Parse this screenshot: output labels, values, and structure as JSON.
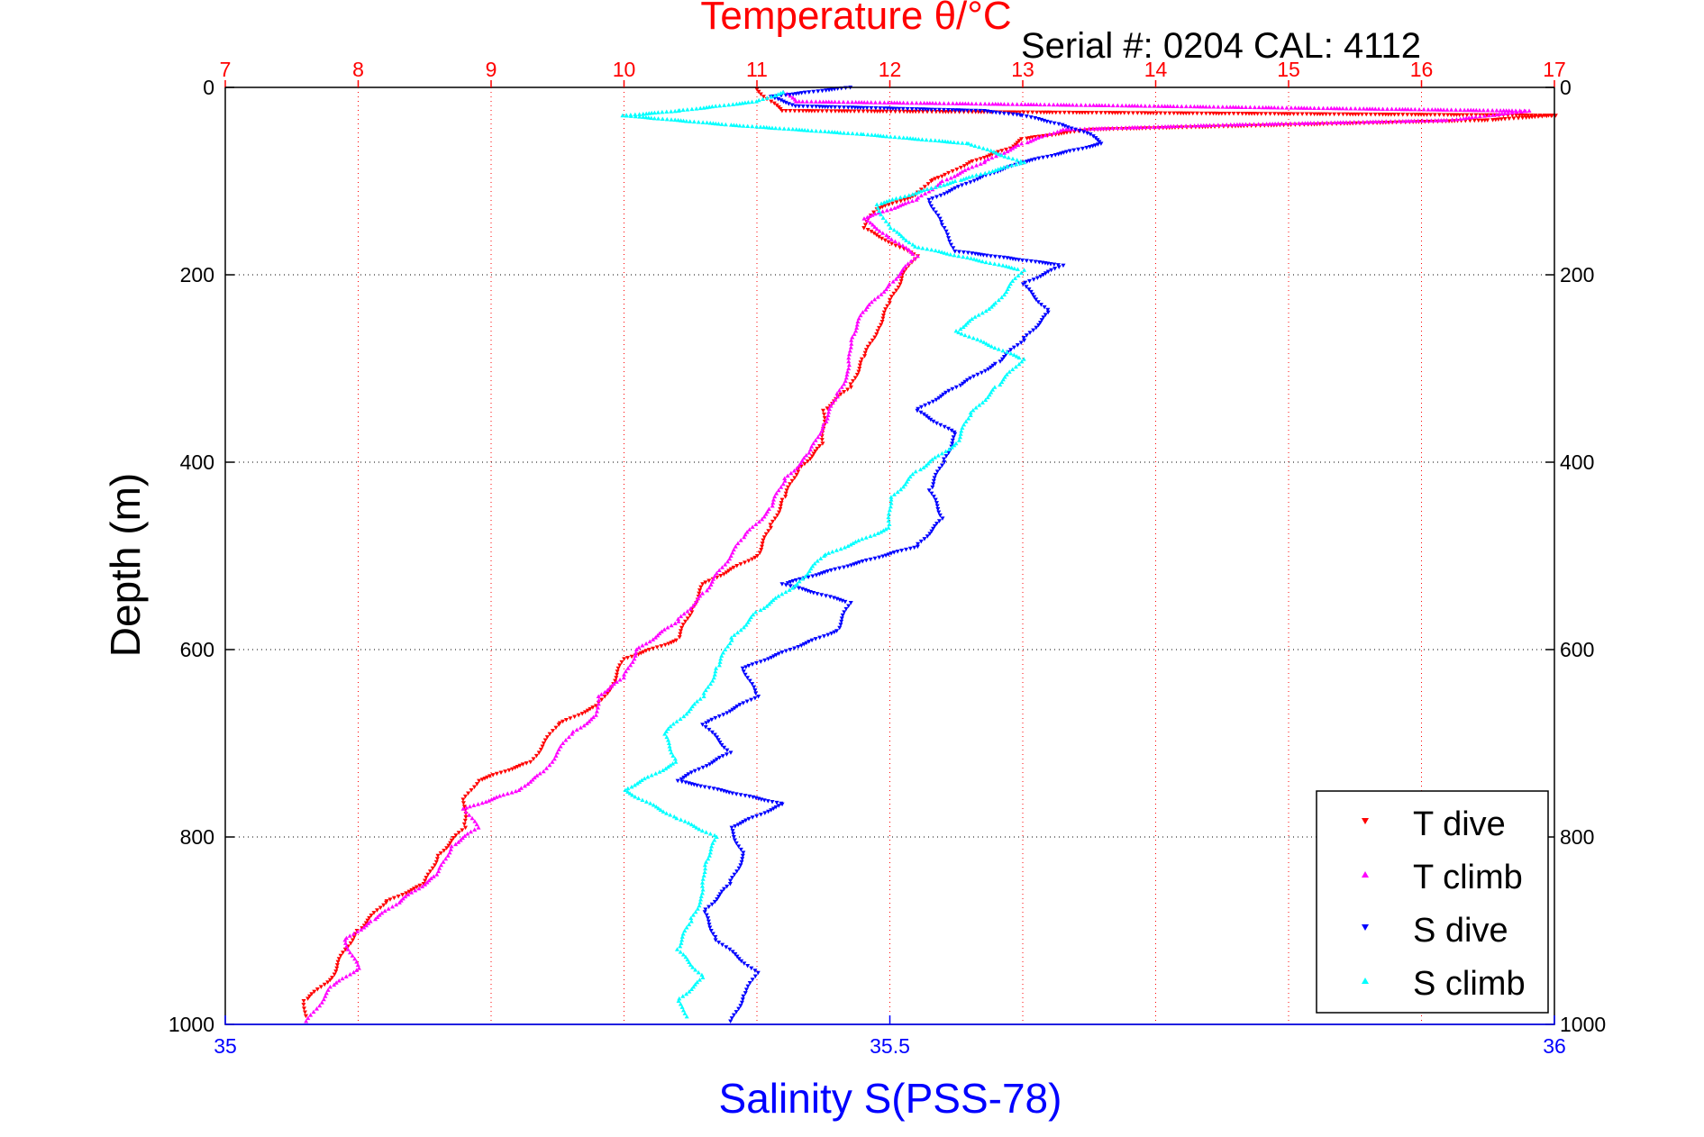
{
  "chart_data": {
    "type": "scatter",
    "title": "Temperature θ/°C",
    "annotation": "Serial #: 0204  CAL: 4112",
    "ylabel": "Depth (m)",
    "xlabel_bottom": "Salinity S(PSS-78)",
    "y_reversed": true,
    "ylim": [
      0,
      1000
    ],
    "yticks": [
      "0",
      "200",
      "400",
      "600",
      "800",
      "1000"
    ],
    "top_axis": {
      "lim": [
        7,
        17
      ],
      "ticks": [
        "7",
        "8",
        "9",
        "10",
        "11",
        "12",
        "13",
        "14",
        "15",
        "16",
        "17"
      ]
    },
    "bottom_axis": {
      "lim": [
        35,
        36
      ],
      "ticks": [
        "35",
        "35.5",
        "36"
      ]
    },
    "grid": true,
    "legend": {
      "placement": "bottom-right",
      "entries": [
        "T dive",
        "T climb",
        "S dive",
        "S climb"
      ]
    },
    "colors": {
      "t_dive": "#ff0000",
      "t_climb": "#ff00ff",
      "s_dive": "#0000ff",
      "s_climb": "#00ffff",
      "top_axis": "#ff0000",
      "bottom_axis": "#0000ff"
    },
    "series": [
      {
        "name": "T dive",
        "axis": "top",
        "marker": "down-triangle",
        "points": [
          [
            11.0,
            2
          ],
          [
            11.1,
            15
          ],
          [
            11.2,
            25
          ],
          [
            17.0,
            30
          ],
          [
            16.5,
            35
          ],
          [
            15.0,
            40
          ],
          [
            13.5,
            45
          ],
          [
            13.0,
            55
          ],
          [
            12.9,
            65
          ],
          [
            12.6,
            80
          ],
          [
            12.4,
            95
          ],
          [
            12.3,
            100
          ],
          [
            12.2,
            115
          ],
          [
            11.9,
            130
          ],
          [
            11.8,
            150
          ],
          [
            12.0,
            165
          ],
          [
            12.2,
            180
          ],
          [
            12.1,
            200
          ],
          [
            12.0,
            230
          ],
          [
            11.9,
            260
          ],
          [
            11.8,
            290
          ],
          [
            11.7,
            320
          ],
          [
            11.5,
            345
          ],
          [
            11.5,
            380
          ],
          [
            11.3,
            410
          ],
          [
            11.2,
            440
          ],
          [
            11.1,
            470
          ],
          [
            11.0,
            500
          ],
          [
            10.6,
            530
          ],
          [
            10.5,
            560
          ],
          [
            10.4,
            590
          ],
          [
            10.0,
            610
          ],
          [
            9.9,
            640
          ],
          [
            9.8,
            660
          ],
          [
            9.5,
            680
          ],
          [
            9.4,
            700
          ],
          [
            9.3,
            720
          ],
          [
            8.9,
            740
          ],
          [
            8.8,
            760
          ],
          [
            8.8,
            790
          ],
          [
            8.6,
            820
          ],
          [
            8.5,
            850
          ],
          [
            8.2,
            870
          ],
          [
            8.0,
            900
          ],
          [
            7.9,
            920
          ],
          [
            7.8,
            950
          ],
          [
            7.6,
            975
          ],
          [
            7.6,
            995
          ]
        ]
      },
      {
        "name": "T climb",
        "axis": "top",
        "marker": "up-triangle",
        "points": [
          [
            11.2,
            5
          ],
          [
            11.3,
            15
          ],
          [
            16.8,
            25
          ],
          [
            16.2,
            35
          ],
          [
            14.5,
            40
          ],
          [
            13.3,
            45
          ],
          [
            13.0,
            60
          ],
          [
            12.7,
            80
          ],
          [
            12.4,
            100
          ],
          [
            12.2,
            120
          ],
          [
            11.8,
            140
          ],
          [
            12.0,
            160
          ],
          [
            12.2,
            180
          ],
          [
            12.0,
            210
          ],
          [
            11.8,
            240
          ],
          [
            11.7,
            270
          ],
          [
            11.7,
            300
          ],
          [
            11.6,
            330
          ],
          [
            11.5,
            360
          ],
          [
            11.4,
            390
          ],
          [
            11.2,
            420
          ],
          [
            11.1,
            450
          ],
          [
            10.9,
            480
          ],
          [
            10.8,
            500
          ],
          [
            10.6,
            540
          ],
          [
            10.4,
            570
          ],
          [
            10.1,
            600
          ],
          [
            10.0,
            630
          ],
          [
            9.8,
            650
          ],
          [
            9.8,
            670
          ],
          [
            9.6,
            690
          ],
          [
            9.5,
            710
          ],
          [
            9.4,
            730
          ],
          [
            9.2,
            750
          ],
          [
            8.8,
            770
          ],
          [
            8.9,
            790
          ],
          [
            8.7,
            810
          ],
          [
            8.6,
            840
          ],
          [
            8.3,
            870
          ],
          [
            8.1,
            890
          ],
          [
            7.9,
            910
          ],
          [
            8.0,
            940
          ],
          [
            7.8,
            960
          ],
          [
            7.7,
            980
          ],
          [
            7.6,
            1000
          ]
        ]
      },
      {
        "name": "S dive",
        "axis": "bottom",
        "marker": "down-triangle",
        "points": [
          [
            35.47,
            0
          ],
          [
            35.41,
            10
          ],
          [
            35.43,
            20
          ],
          [
            35.57,
            25
          ],
          [
            35.6,
            30
          ],
          [
            35.63,
            40
          ],
          [
            35.65,
            50
          ],
          [
            35.66,
            60
          ],
          [
            35.6,
            80
          ],
          [
            35.57,
            95
          ],
          [
            35.53,
            120
          ],
          [
            35.54,
            150
          ],
          [
            35.55,
            175
          ],
          [
            35.63,
            190
          ],
          [
            35.6,
            210
          ],
          [
            35.62,
            240
          ],
          [
            35.6,
            270
          ],
          [
            35.58,
            295
          ],
          [
            35.55,
            320
          ],
          [
            35.52,
            345
          ],
          [
            35.55,
            370
          ],
          [
            35.54,
            400
          ],
          [
            35.53,
            430
          ],
          [
            35.54,
            460
          ],
          [
            35.52,
            490
          ],
          [
            35.42,
            530
          ],
          [
            35.47,
            550
          ],
          [
            35.46,
            580
          ],
          [
            35.39,
            620
          ],
          [
            35.4,
            650
          ],
          [
            35.36,
            680
          ],
          [
            35.38,
            710
          ],
          [
            35.34,
            740
          ],
          [
            35.42,
            765
          ],
          [
            35.38,
            790
          ],
          [
            35.39,
            820
          ],
          [
            35.38,
            850
          ],
          [
            35.36,
            880
          ],
          [
            35.37,
            910
          ],
          [
            35.4,
            945
          ],
          [
            35.39,
            970
          ],
          [
            35.38,
            1000
          ]
        ]
      },
      {
        "name": "S climb",
        "axis": "bottom",
        "marker": "up-triangle",
        "points": [
          [
            35.42,
            5
          ],
          [
            35.4,
            15
          ],
          [
            35.34,
            25
          ],
          [
            35.3,
            30
          ],
          [
            35.38,
            40
          ],
          [
            35.48,
            50
          ],
          [
            35.56,
            60
          ],
          [
            35.6,
            80
          ],
          [
            35.55,
            100
          ],
          [
            35.49,
            125
          ],
          [
            35.5,
            150
          ],
          [
            35.52,
            170
          ],
          [
            35.6,
            195
          ],
          [
            35.58,
            230
          ],
          [
            35.55,
            260
          ],
          [
            35.6,
            290
          ],
          [
            35.58,
            320
          ],
          [
            35.56,
            350
          ],
          [
            35.55,
            380
          ],
          [
            35.52,
            410
          ],
          [
            35.5,
            440
          ],
          [
            35.5,
            470
          ],
          [
            35.45,
            500
          ],
          [
            35.43,
            530
          ],
          [
            35.4,
            560
          ],
          [
            35.38,
            590
          ],
          [
            35.37,
            620
          ],
          [
            35.36,
            650
          ],
          [
            35.33,
            690
          ],
          [
            35.34,
            720
          ],
          [
            35.3,
            750
          ],
          [
            35.34,
            780
          ],
          [
            35.37,
            800
          ],
          [
            35.36,
            830
          ],
          [
            35.36,
            860
          ],
          [
            35.35,
            890
          ],
          [
            35.34,
            920
          ],
          [
            35.36,
            950
          ],
          [
            35.34,
            975
          ],
          [
            35.35,
            995
          ]
        ]
      }
    ]
  }
}
